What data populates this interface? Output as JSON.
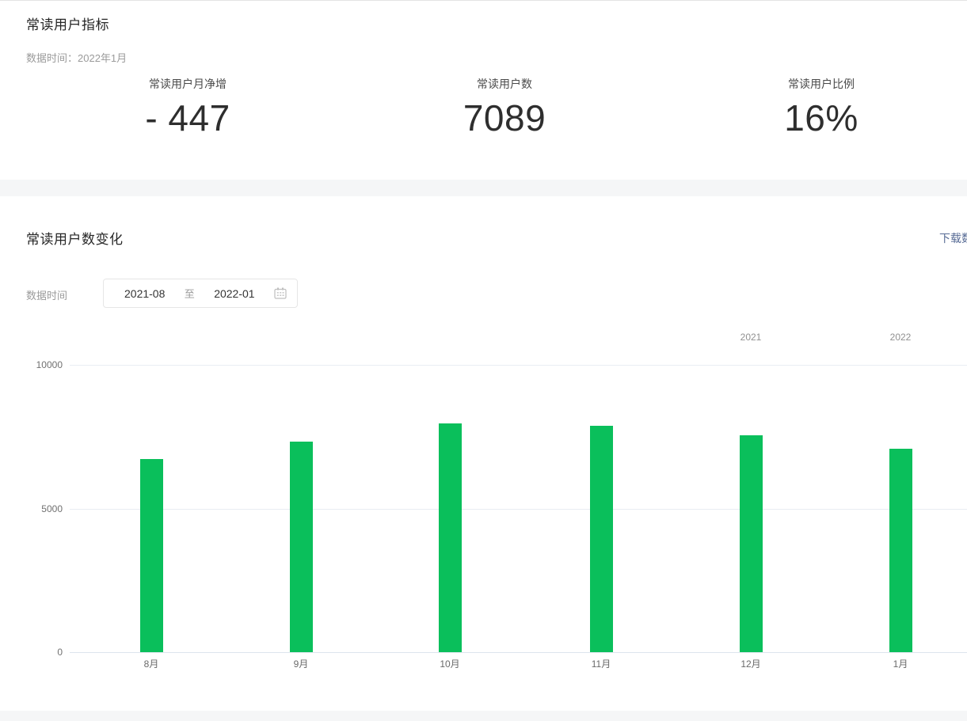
{
  "section_metrics": {
    "title": "常读用户指标",
    "data_time": "数据时间：2022年1月",
    "stats": [
      {
        "label": "常读用户月净增",
        "value": "- 447"
      },
      {
        "label": "常读用户数",
        "value": "7089"
      },
      {
        "label": "常读用户比例",
        "value": "16%"
      }
    ]
  },
  "section_chart": {
    "title": "常读用户数变化",
    "download_link": "下载数据表格",
    "filter_label": "数据时间",
    "date_range": {
      "start": "2021-08",
      "separator": "至",
      "end": "2022-01"
    }
  },
  "chart_data": {
    "type": "bar",
    "categories": [
      "8月",
      "9月",
      "10月",
      "11月",
      "12月",
      "1月"
    ],
    "values": [
      6720,
      7320,
      7960,
      7880,
      7536,
      7089
    ],
    "title": "常读用户数变化",
    "xlabel": "",
    "ylabel": "",
    "ylim": [
      0,
      10000
    ],
    "yticks": [
      0,
      5000,
      10000
    ],
    "year_labels": [
      {
        "text": "2021",
        "month_index": 4
      },
      {
        "text": "2022",
        "month_index": 5
      }
    ],
    "grid": true,
    "legend": false,
    "bar_color": "#0abf5b"
  },
  "colors": {
    "bar_green": "#0abf5b",
    "link_blue": "#576b95",
    "band_gray": "#f5f6f7"
  }
}
